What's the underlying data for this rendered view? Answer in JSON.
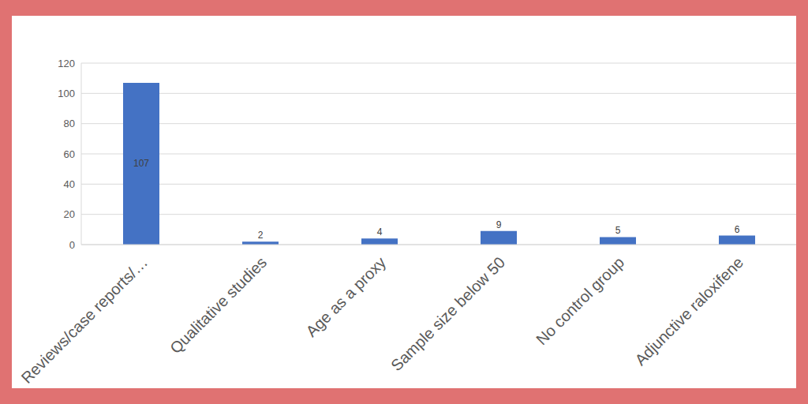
{
  "chart_data": {
    "type": "bar",
    "categories": [
      "Reviews/case reports/…",
      "Qualitative studies",
      "Age as a proxy",
      "Sample size below 50",
      "No control group",
      "Adjunctive raloxifene"
    ],
    "values": [
      107,
      2,
      4,
      9,
      5,
      6
    ],
    "color": "#4472c4",
    "ylim": [
      0,
      120
    ],
    "yticks": [
      0,
      20,
      40,
      60,
      80,
      100,
      120
    ],
    "grid": true,
    "data_labels": true
  }
}
